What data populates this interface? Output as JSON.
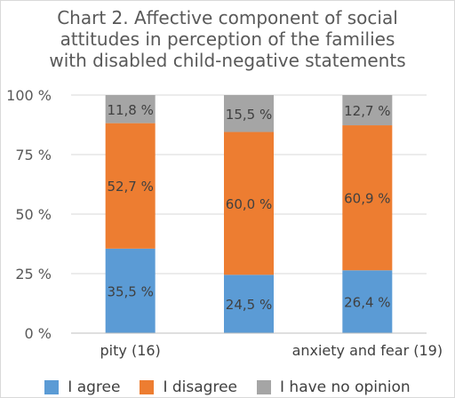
{
  "chart_data": {
    "type": "bar",
    "stacked": true,
    "title_lines": [
      "Chart 2. Affective component of social",
      "attitudes in perception of the families",
      "with disabled child-negative statements"
    ],
    "categories": [
      "pity (16)",
      "",
      "anxiety and fear (19)"
    ],
    "series": [
      {
        "name": "I agree",
        "color": "#5b9bd5",
        "values": [
          35.5,
          24.5,
          26.4
        ],
        "labels": [
          "35,5 %",
          "24,5 %",
          "26,4 %"
        ]
      },
      {
        "name": "I disagree",
        "color": "#ed7d31",
        "values": [
          52.7,
          60.0,
          60.9
        ],
        "labels": [
          "52,7 %",
          "60,0 %",
          "60,9 %"
        ]
      },
      {
        "name": "I have no opinion",
        "color": "#a5a5a5",
        "values": [
          11.8,
          15.5,
          12.7
        ],
        "labels": [
          "11,8 %",
          "15,5 %",
          "12,7 %"
        ]
      }
    ],
    "y_ticks": [
      0,
      25,
      50,
      75,
      100
    ],
    "y_tick_labels": [
      "0 %",
      "25 %",
      "50 %",
      "75 %",
      "100 %"
    ],
    "ylim": [
      0,
      100
    ],
    "grid": true,
    "legend_position": "bottom"
  }
}
